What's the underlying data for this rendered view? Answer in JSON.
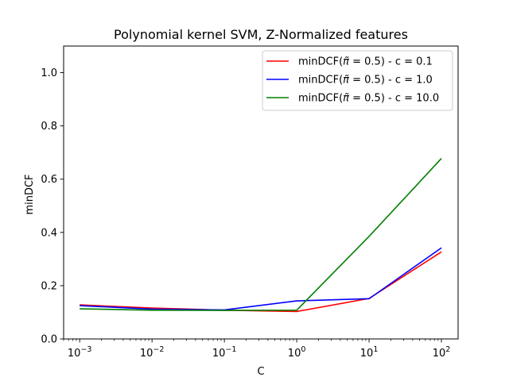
{
  "chart_data": {
    "type": "line",
    "title": "Polynomial kernel SVM, Z-Normalized features",
    "xlabel": "C",
    "ylabel": "minDCF",
    "xscale": "log",
    "xlim": [
      0.0006,
      170
    ],
    "ylim": [
      0.0,
      1.1
    ],
    "grid": false,
    "legend_position": "top-right",
    "x": [
      0.001,
      0.01,
      0.1,
      1,
      10,
      100
    ],
    "x_tick_labels": [
      {
        "base": "10",
        "exp": "−3",
        "value": 0.001
      },
      {
        "base": "10",
        "exp": "−2",
        "value": 0.01
      },
      {
        "base": "10",
        "exp": "−1",
        "value": 0.1
      },
      {
        "base": "10",
        "exp": "0",
        "value": 1
      },
      {
        "base": "10",
        "exp": "1",
        "value": 10
      },
      {
        "base": "10",
        "exp": "2",
        "value": 100
      }
    ],
    "y_ticks": [
      0.0,
      0.2,
      0.4,
      0.6,
      0.8,
      1.0
    ],
    "y_tick_labels": [
      "0.0",
      "0.2",
      "0.4",
      "0.6",
      "0.8",
      "1.0"
    ],
    "series": [
      {
        "name": "minDCF(π̃ = 0.5) - c = 0.1",
        "legend_prefix": "minDCF(",
        "legend_pi": "π̃",
        "legend_suffix": " = 0.5) - c = 0.1",
        "color": "#ff0000",
        "values": [
          0.128,
          0.116,
          0.108,
          0.103,
          0.152,
          0.327
        ]
      },
      {
        "name": "minDCF(π̃ = 0.5) - c = 1.0",
        "legend_prefix": "minDCF(",
        "legend_pi": "π̃",
        "legend_suffix": " = 0.5) - c = 1.0",
        "color": "#0000ff",
        "values": [
          0.125,
          0.112,
          0.109,
          0.143,
          0.151,
          0.342
        ]
      },
      {
        "name": "minDCF(π̃ = 0.5) - c = 10.0",
        "legend_prefix": "minDCF(",
        "legend_pi": "π̃",
        "legend_suffix": " = 0.5) - c = 10.0",
        "color": "#008000",
        "values": [
          0.113,
          0.108,
          0.107,
          0.108,
          0.385,
          0.678
        ]
      }
    ]
  }
}
